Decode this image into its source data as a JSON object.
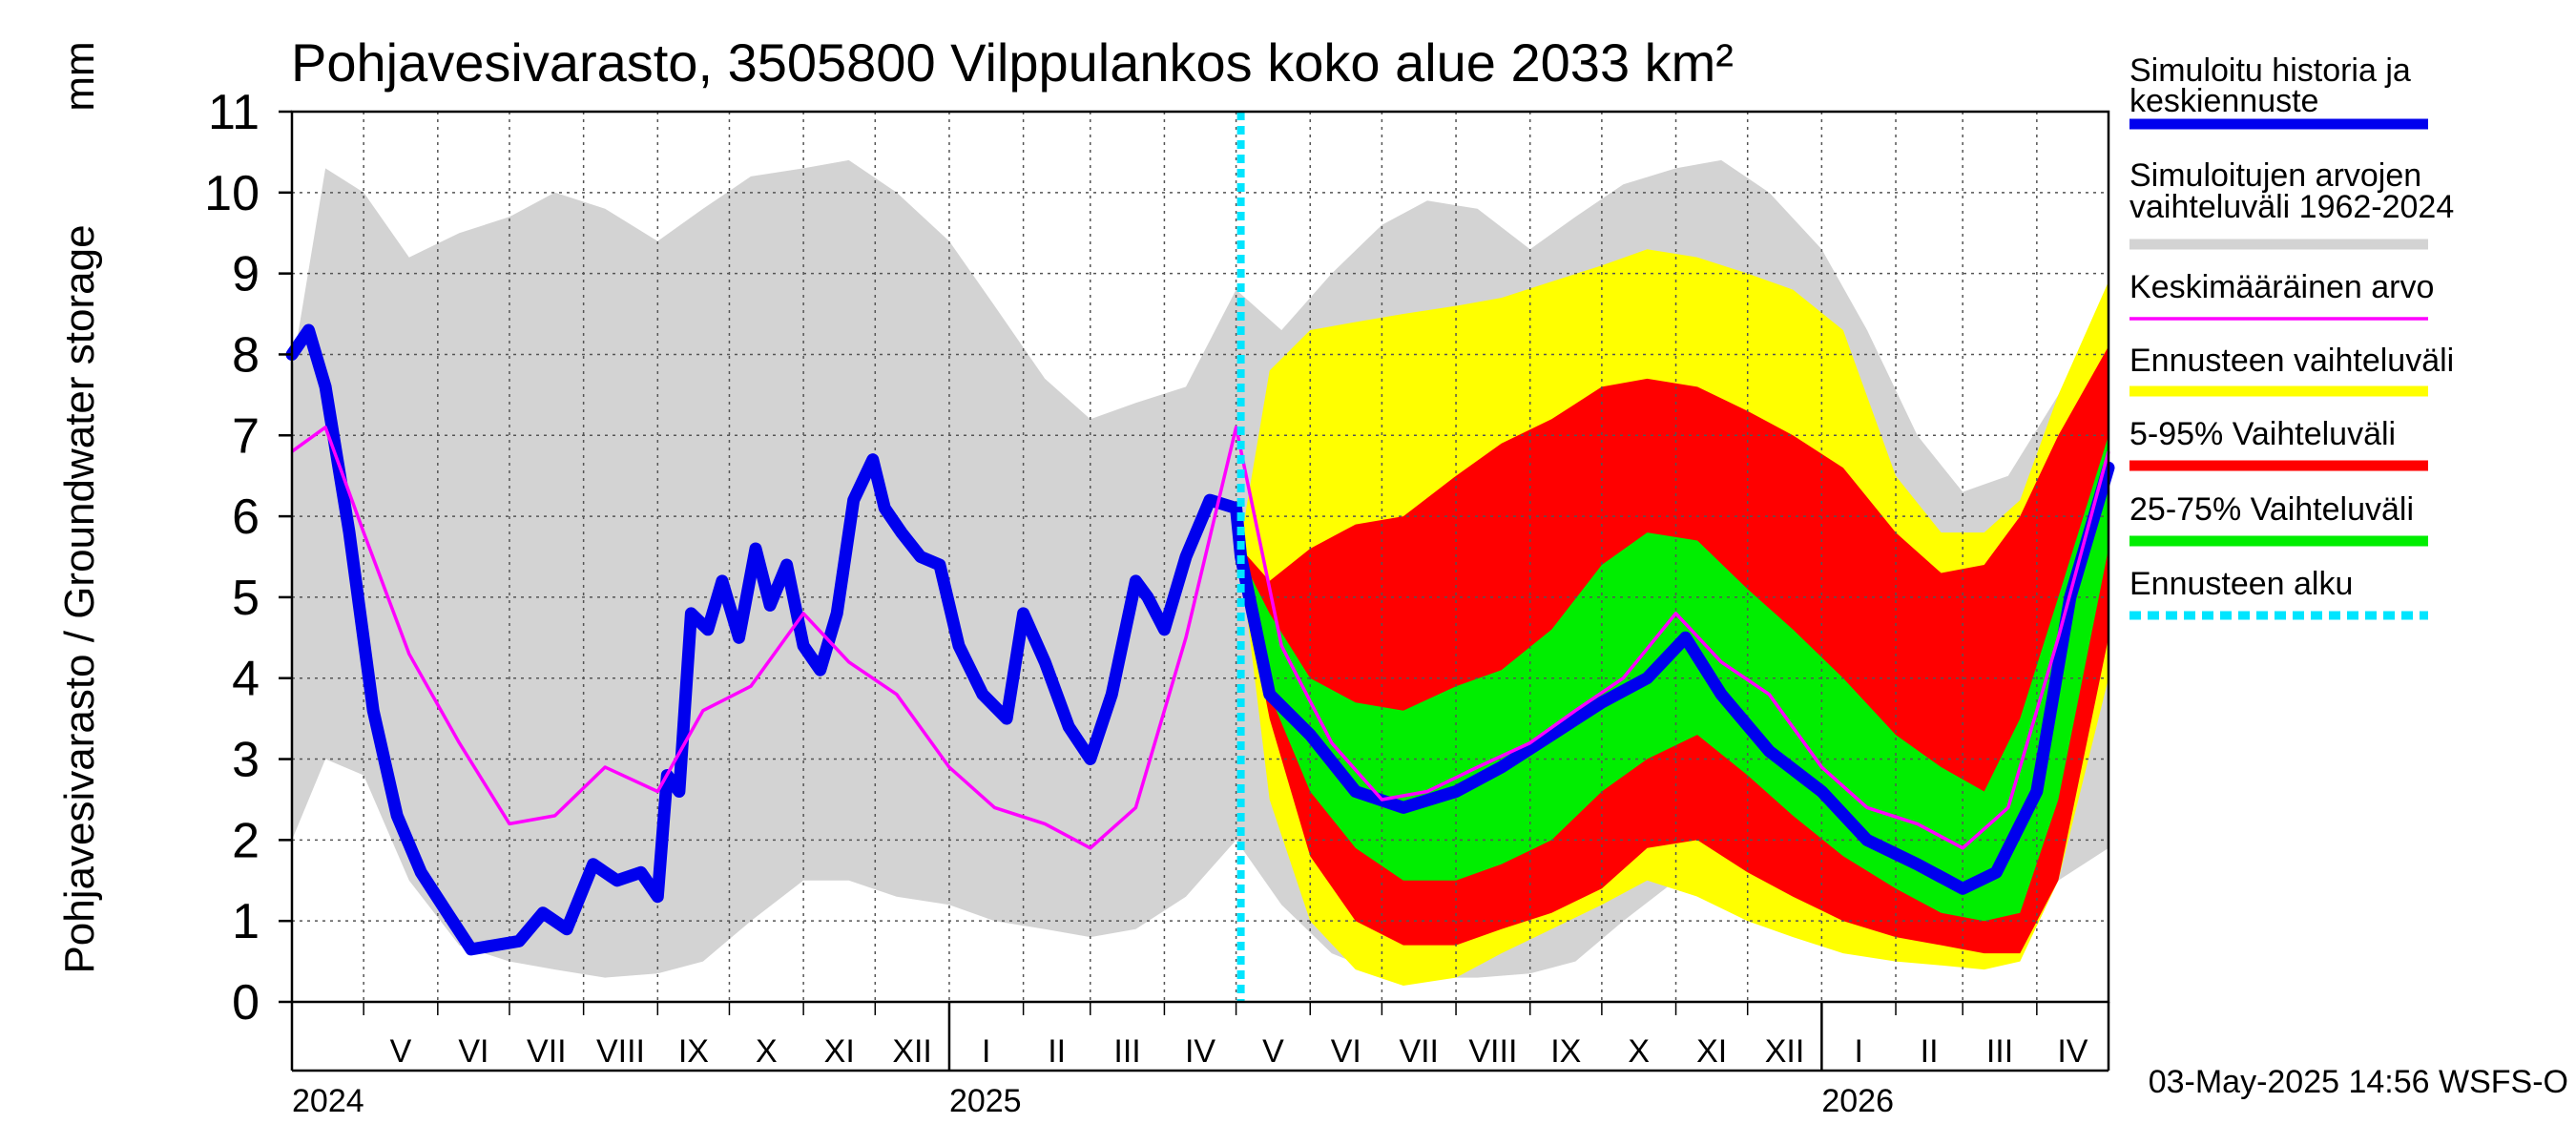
{
  "chart_data": {
    "type": "area",
    "title": "Pohjavesivarasto, 3505800 Vilppulankos koko alue 2033 km²",
    "ylabel": "Pohjavesivarasto / Groundwater storage",
    "yunit": "mm",
    "ylim": [
      0,
      11
    ],
    "yticks": [
      "0",
      "1",
      "2",
      "3",
      "4",
      "5",
      "6",
      "7",
      "8",
      "9",
      "10",
      "11"
    ],
    "xlim": [
      "2024-04-01",
      "2026-05-01"
    ],
    "grid": true,
    "month_labels": [
      "V",
      "VI",
      "VII",
      "VIII",
      "IX",
      "X",
      "XI",
      "XII",
      "I",
      "II",
      "III",
      "IV",
      "V",
      "VI",
      "VII",
      "VIII",
      "IX",
      "X",
      "XI",
      "XII",
      "I",
      "II",
      "III",
      "IV"
    ],
    "year_labels": [
      {
        "label": "2024",
        "x": "2024-04-01"
      },
      {
        "label": "2025",
        "x": "2025-01-01"
      },
      {
        "label": "2026",
        "x": "2026-01-01"
      }
    ],
    "forecast_start": "2025-05-03",
    "legend_position": "right",
    "legend": [
      {
        "label": "Simuloitu historia ja keskiennuste",
        "color": "#0000ee",
        "style": "thick"
      },
      {
        "label": "Simuloitujen arvojen vaihteluväli 1962-2024",
        "color": "#d3d3d3",
        "style": "thick"
      },
      {
        "label": "Keskimääräinen arvo",
        "color": "#ff00ff",
        "style": "thin"
      },
      {
        "label": "Ennusteen vaihteluväli",
        "color": "#ffff00",
        "style": "thick"
      },
      {
        "label": "5-95% Vaihteluväli",
        "color": "#ff0000",
        "style": "thick"
      },
      {
        "label": "25-75% Vaihteluväli",
        "color": "#00ee00",
        "style": "thick"
      },
      {
        "label": "Ennusteen alku",
        "color": "#00e5ff",
        "style": "dashed"
      }
    ],
    "series": [
      {
        "name": "Simuloitujen arvojen vaihteluväli 1962-2024",
        "role": "history_range",
        "x": [
          "2024-04-01",
          "2024-04-15",
          "2024-05-01",
          "2024-05-20",
          "2024-06-10",
          "2024-07-01",
          "2024-07-20",
          "2024-08-10",
          "2024-09-01",
          "2024-09-20",
          "2024-10-10",
          "2024-11-01",
          "2024-11-20",
          "2024-12-10",
          "2025-01-01",
          "2025-01-20",
          "2025-02-10",
          "2025-03-01",
          "2025-03-20",
          "2025-04-10",
          "2025-05-01",
          "2025-05-20",
          "2025-06-10",
          "2025-07-01",
          "2025-07-20",
          "2025-08-10",
          "2025-09-01",
          "2025-09-20",
          "2025-10-10",
          "2025-11-01",
          "2025-11-20",
          "2025-12-10",
          "2026-01-01",
          "2026-01-20",
          "2026-02-10",
          "2026-03-01",
          "2026-03-20",
          "2026-04-10",
          "2026-05-01"
        ],
        "low": [
          2.0,
          3.0,
          2.8,
          1.5,
          0.7,
          0.5,
          0.4,
          0.3,
          0.35,
          0.5,
          1.0,
          1.5,
          1.5,
          1.3,
          1.2,
          1.0,
          0.9,
          0.8,
          0.9,
          1.3,
          2.0,
          1.2,
          0.6,
          0.35,
          0.3,
          0.3,
          0.35,
          0.5,
          1.0,
          1.5,
          1.5,
          1.3,
          1.1,
          0.9,
          0.8,
          0.7,
          0.8,
          1.5,
          1.9
        ],
        "high": [
          7.8,
          10.3,
          10.0,
          9.2,
          9.5,
          9.7,
          10.0,
          9.8,
          9.4,
          9.8,
          10.2,
          10.3,
          10.4,
          10.0,
          9.4,
          8.6,
          7.7,
          7.2,
          7.4,
          7.6,
          8.8,
          8.3,
          9.0,
          9.6,
          9.9,
          9.8,
          9.3,
          9.7,
          10.1,
          10.3,
          10.4,
          10.0,
          9.3,
          8.3,
          7.0,
          6.3,
          6.5,
          7.5,
          8.8
        ]
      },
      {
        "name": "Ennusteen vaihteluväli",
        "role": "forecast_full",
        "x": [
          "2025-05-03",
          "2025-05-15",
          "2025-06-01",
          "2025-06-20",
          "2025-07-10",
          "2025-08-01",
          "2025-08-20",
          "2025-09-10",
          "2025-10-01",
          "2025-10-20",
          "2025-11-10",
          "2025-12-01",
          "2025-12-20",
          "2026-01-10",
          "2026-02-01",
          "2026-02-20",
          "2026-03-10",
          "2026-03-25",
          "2026-04-10",
          "2026-05-01"
        ],
        "low": [
          5.4,
          2.5,
          1.0,
          0.4,
          0.2,
          0.3,
          0.6,
          0.9,
          1.2,
          1.5,
          1.3,
          1.0,
          0.8,
          0.6,
          0.5,
          0.45,
          0.4,
          0.5,
          1.5,
          4.0
        ],
        "high": [
          5.7,
          7.8,
          8.3,
          8.4,
          8.5,
          8.6,
          8.7,
          8.9,
          9.1,
          9.3,
          9.2,
          9.0,
          8.8,
          8.3,
          6.5,
          5.8,
          5.8,
          6.2,
          7.5,
          8.9
        ]
      },
      {
        "name": "5-95% Vaihteluväli",
        "role": "forecast_p5_p95",
        "x": [
          "2025-05-03",
          "2025-05-15",
          "2025-06-01",
          "2025-06-20",
          "2025-07-10",
          "2025-08-01",
          "2025-08-20",
          "2025-09-10",
          "2025-10-01",
          "2025-10-20",
          "2025-11-10",
          "2025-12-01",
          "2025-12-20",
          "2026-01-10",
          "2026-02-01",
          "2026-02-20",
          "2026-03-10",
          "2026-03-25",
          "2026-04-10",
          "2026-05-01"
        ],
        "low": [
          5.3,
          3.5,
          1.8,
          1.0,
          0.7,
          0.7,
          0.9,
          1.1,
          1.4,
          1.9,
          2.0,
          1.6,
          1.3,
          1.0,
          0.8,
          0.7,
          0.6,
          0.6,
          1.5,
          4.5
        ],
        "high": [
          5.6,
          5.2,
          5.6,
          5.9,
          6.0,
          6.5,
          6.9,
          7.2,
          7.6,
          7.7,
          7.6,
          7.3,
          7.0,
          6.6,
          5.8,
          5.3,
          5.4,
          6.0,
          7.0,
          8.1
        ]
      },
      {
        "name": "25-75% Vaihteluväli",
        "role": "forecast_p25_p75",
        "x": [
          "2025-05-03",
          "2025-05-15",
          "2025-06-01",
          "2025-06-20",
          "2025-07-10",
          "2025-08-01",
          "2025-08-20",
          "2025-09-10",
          "2025-10-01",
          "2025-10-20",
          "2025-11-10",
          "2025-12-01",
          "2025-12-20",
          "2026-01-10",
          "2026-02-01",
          "2026-02-20",
          "2026-03-10",
          "2026-03-25",
          "2026-04-10",
          "2026-05-01"
        ],
        "low": [
          5.3,
          3.8,
          2.6,
          1.9,
          1.5,
          1.5,
          1.7,
          2.0,
          2.6,
          3.0,
          3.3,
          2.8,
          2.3,
          1.8,
          1.4,
          1.1,
          1.0,
          1.1,
          2.5,
          5.6
        ],
        "high": [
          5.5,
          4.8,
          4.0,
          3.7,
          3.6,
          3.9,
          4.1,
          4.6,
          5.4,
          5.8,
          5.7,
          5.1,
          4.6,
          4.0,
          3.3,
          2.9,
          2.6,
          3.5,
          5.0,
          7.0
        ]
      },
      {
        "name": "Simuloitu historia ja keskiennuste",
        "role": "median",
        "x": [
          "2024-04-01",
          "2024-04-08",
          "2024-04-15",
          "2024-04-25",
          "2024-05-05",
          "2024-05-15",
          "2024-05-25",
          "2024-06-05",
          "2024-06-15",
          "2024-06-25",
          "2024-07-05",
          "2024-07-15",
          "2024-07-25",
          "2024-08-05",
          "2024-08-15",
          "2024-08-25",
          "2024-09-01",
          "2024-09-05",
          "2024-09-10",
          "2024-09-15",
          "2024-09-22",
          "2024-09-28",
          "2024-10-05",
          "2024-10-12",
          "2024-10-18",
          "2024-10-25",
          "2024-11-01",
          "2024-11-08",
          "2024-11-15",
          "2024-11-22",
          "2024-11-30",
          "2024-12-05",
          "2024-12-12",
          "2024-12-20",
          "2024-12-28",
          "2025-01-05",
          "2025-01-15",
          "2025-01-25",
          "2025-02-01",
          "2025-02-10",
          "2025-02-20",
          "2025-03-01",
          "2025-03-10",
          "2025-03-20",
          "2025-03-25",
          "2025-04-01",
          "2025-04-10",
          "2025-04-20",
          "2025-05-01",
          "2025-05-03",
          "2025-05-15",
          "2025-06-01",
          "2025-06-20",
          "2025-07-10",
          "2025-08-01",
          "2025-08-20",
          "2025-09-10",
          "2025-10-01",
          "2025-10-20",
          "2025-11-05",
          "2025-11-20",
          "2025-12-10",
          "2026-01-01",
          "2026-01-20",
          "2026-02-10",
          "2026-03-01",
          "2026-03-15",
          "2026-04-01",
          "2026-04-15",
          "2026-05-01"
        ],
        "values": [
          8.0,
          8.3,
          7.6,
          5.8,
          3.6,
          2.3,
          1.6,
          1.1,
          0.65,
          0.7,
          0.75,
          1.1,
          0.9,
          1.7,
          1.5,
          1.6,
          1.3,
          2.8,
          2.6,
          4.8,
          4.6,
          5.2,
          4.5,
          5.6,
          4.9,
          5.4,
          4.4,
          4.1,
          4.8,
          6.2,
          6.7,
          6.1,
          5.8,
          5.5,
          5.4,
          4.4,
          3.8,
          3.5,
          4.8,
          4.2,
          3.4,
          3.0,
          3.8,
          5.2,
          5.0,
          4.6,
          5.5,
          6.2,
          6.1,
          5.5,
          3.8,
          3.3,
          2.6,
          2.4,
          2.6,
          2.9,
          3.3,
          3.7,
          4.0,
          4.5,
          3.8,
          3.1,
          2.6,
          2.0,
          1.7,
          1.4,
          1.6,
          2.6,
          5.0,
          6.6
        ],
        "color": "#0000ee"
      },
      {
        "name": "Keskimääräinen arvo",
        "role": "mean",
        "x": [
          "2024-04-01",
          "2024-04-15",
          "2024-05-01",
          "2024-05-20",
          "2024-06-10",
          "2024-07-01",
          "2024-07-20",
          "2024-08-10",
          "2024-09-01",
          "2024-09-20",
          "2024-10-10",
          "2024-11-01",
          "2024-11-20",
          "2024-12-10",
          "2025-01-01",
          "2025-01-20",
          "2025-02-10",
          "2025-03-01",
          "2025-03-20",
          "2025-04-10",
          "2025-05-01",
          "2025-05-20",
          "2025-06-10",
          "2025-07-01",
          "2025-07-20",
          "2025-08-10",
          "2025-09-01",
          "2025-09-20",
          "2025-10-10",
          "2025-11-01",
          "2025-11-20",
          "2025-12-10",
          "2026-01-01",
          "2026-01-20",
          "2026-02-10",
          "2026-03-01",
          "2026-03-20",
          "2026-04-10",
          "2026-05-01"
        ],
        "values": [
          6.8,
          7.1,
          5.8,
          4.3,
          3.2,
          2.2,
          2.3,
          2.9,
          2.6,
          3.6,
          3.9,
          4.8,
          4.2,
          3.8,
          2.9,
          2.4,
          2.2,
          1.9,
          2.4,
          4.5,
          7.1,
          4.4,
          3.2,
          2.5,
          2.6,
          2.9,
          3.2,
          3.6,
          4.0,
          4.8,
          4.2,
          3.8,
          2.9,
          2.4,
          2.2,
          1.9,
          2.4,
          4.5,
          6.8
        ],
        "color": "#ff00ff"
      }
    ]
  },
  "footer": {
    "timestamp": "03-May-2025 14:56 WSFS-O"
  }
}
